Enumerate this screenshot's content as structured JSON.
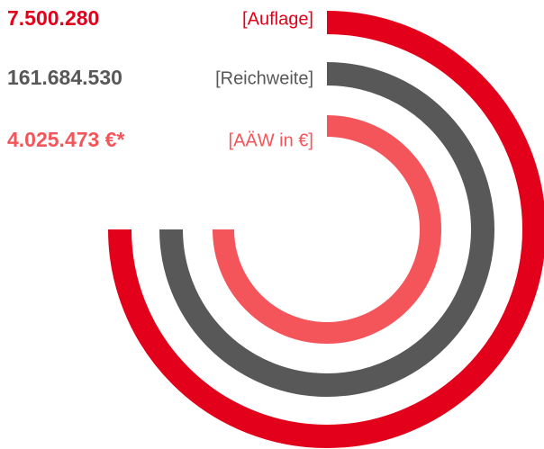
{
  "items": [
    {
      "value": "7.500.280",
      "label": "[Auflage]",
      "color": "#e2001a"
    },
    {
      "value": "161.684.530",
      "label": "[Reichweite]",
      "color": "#585858"
    },
    {
      "value": "4.025.473 €*",
      "label": "[AÄW in €]",
      "color": "#f4555a"
    }
  ]
}
